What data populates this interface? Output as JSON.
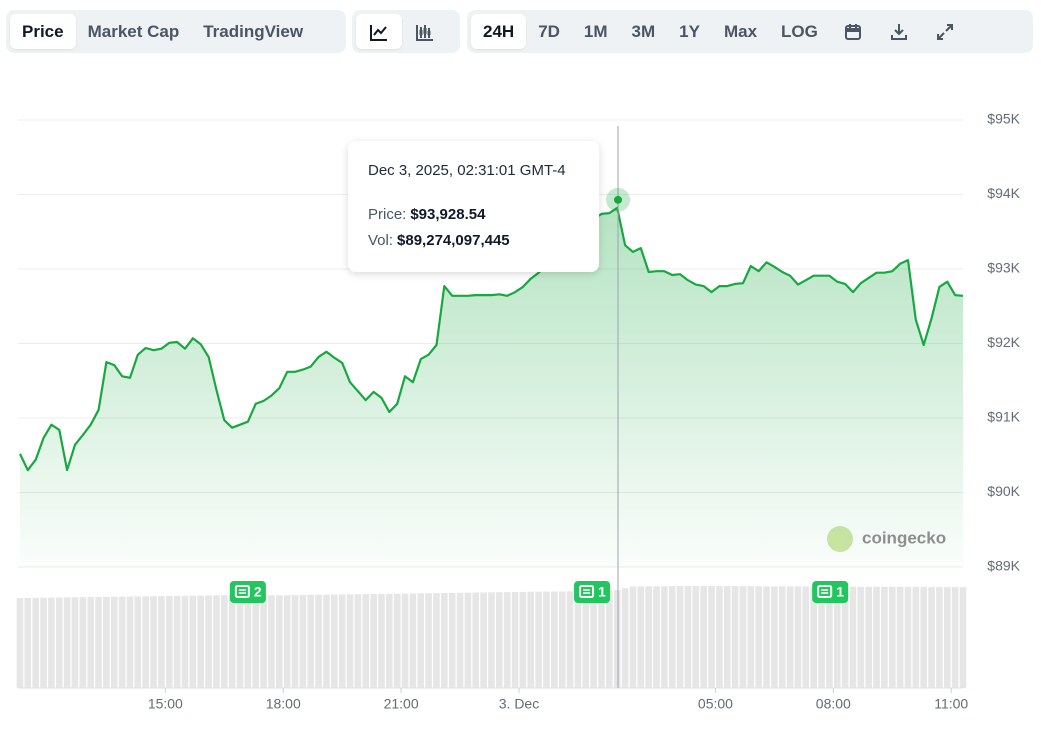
{
  "toolbar": {
    "views": [
      "Price",
      "Market Cap",
      "TradingView"
    ],
    "active_view": "Price",
    "ranges": [
      "24H",
      "7D",
      "1M",
      "3M",
      "1Y",
      "Max",
      "LOG"
    ],
    "active_range": "24H"
  },
  "watermark": "coingecko",
  "chart_data": {
    "type": "line",
    "x": [
      11.3,
      11.5,
      11.7,
      11.9,
      12.1,
      12.3,
      12.5,
      12.7,
      12.9,
      13.1,
      13.3,
      13.5,
      13.7,
      13.9,
      14.1,
      14.3,
      14.5,
      14.7,
      14.9,
      15.1,
      15.3,
      15.5,
      15.7,
      15.9,
      16.1,
      16.3,
      16.5,
      16.7,
      16.9,
      17.1,
      17.3,
      17.5,
      17.7,
      17.9,
      18.1,
      18.3,
      18.5,
      18.7,
      18.9,
      19.1,
      19.3,
      19.5,
      19.7,
      19.9,
      20.1,
      20.3,
      20.5,
      20.7,
      20.9,
      21.1,
      21.3,
      21.5,
      21.7,
      21.9,
      22.1,
      22.3,
      22.5,
      22.7,
      22.9,
      23.1,
      23.3,
      23.5,
      23.7,
      23.9,
      24.1,
      24.3,
      24.5,
      24.7,
      24.9,
      25.1,
      25.3,
      25.5,
      25.7,
      25.9,
      26.1,
      26.3,
      26.5,
      26.7,
      26.9,
      27.1,
      27.3,
      27.5,
      27.7,
      27.9,
      28.1,
      28.3,
      28.5,
      28.7,
      28.9,
      29.1,
      29.3,
      29.5,
      29.7,
      29.9,
      30.1,
      30.3,
      30.5,
      30.7,
      30.9,
      31.1,
      31.3,
      31.5,
      31.7,
      31.9,
      32.1,
      32.3,
      32.5,
      32.7,
      32.9,
      33.1,
      33.3,
      33.5,
      33.7,
      33.9,
      34.1,
      34.3,
      34.5,
      34.7,
      34.9,
      35.1,
      35.3
    ],
    "xlim": [
      11.25,
      35.3
    ],
    "xticks": [
      {
        "value": 15,
        "label": "15:00"
      },
      {
        "value": 18,
        "label": "18:00"
      },
      {
        "value": 21,
        "label": "21:00"
      },
      {
        "value": 24,
        "label": "3. Dec"
      },
      {
        "value": 29,
        "label": "05:00"
      },
      {
        "value": 32,
        "label": "08:00"
      },
      {
        "value": 35,
        "label": "11:00"
      }
    ],
    "ylim": [
      89000,
      95000
    ],
    "yticks": [
      {
        "value": 95000,
        "label": "$95K"
      },
      {
        "value": 94000,
        "label": "$94K"
      },
      {
        "value": 93000,
        "label": "$93K"
      },
      {
        "value": 92000,
        "label": "$92K"
      },
      {
        "value": 91000,
        "label": "$91K"
      },
      {
        "value": 90000,
        "label": "$90K"
      },
      {
        "value": 89000,
        "label": "$89K"
      }
    ],
    "grid": true,
    "series": [
      {
        "type": "line",
        "color": "#17a840",
        "values": [
          90520,
          90300,
          90440,
          90730,
          90910,
          90840,
          90300,
          90640,
          90770,
          90910,
          91110,
          91750,
          91710,
          91560,
          91540,
          91850,
          91940,
          91910,
          91930,
          92010,
          92020,
          91930,
          92070,
          91990,
          91820,
          91380,
          90970,
          90870,
          90910,
          90950,
          91190,
          91230,
          91300,
          91400,
          91620,
          91620,
          91650,
          91690,
          91820,
          91890,
          91810,
          91740,
          91480,
          91360,
          91240,
          91350,
          91270,
          91080,
          91190,
          91560,
          91480,
          91790,
          91850,
          91980,
          92770,
          92640,
          92640,
          92640,
          92650,
          92650,
          92650,
          92660,
          92640,
          92690,
          92760,
          92870,
          92950,
          93040,
          93160,
          93280,
          93390,
          93470,
          93550,
          93670,
          93740,
          93750,
          93820,
          93320,
          93230,
          93280,
          92960,
          92970,
          92970,
          92920,
          92930,
          92850,
          92790,
          92770,
          92690,
          92770,
          92770,
          92800,
          92810,
          93040,
          92970,
          93090,
          93030,
          92960,
          92910,
          92790,
          92850,
          92910,
          92910,
          92910,
          92830,
          92800,
          92690,
          92810,
          92880,
          92950,
          92950,
          92970,
          93070,
          93120,
          92320,
          91980,
          92340,
          92760,
          92830,
          92650,
          92640
        ]
      },
      {
        "type": "bar",
        "color": "#e6e6e6",
        "values": [
          82000000000,
          82100000000,
          82200000000,
          82300000000,
          82400000000,
          82500000000,
          82600000000,
          82700000000,
          82800000000,
          82900000000,
          83000000000,
          83100000000,
          83200000000,
          83300000000,
          83400000000,
          83500000000,
          83600000000,
          83700000000,
          83800000000,
          83900000000,
          84000000000,
          84100000000,
          84200000000,
          84300000000,
          84400000000,
          84500000000,
          84600000000,
          84700000000,
          84800000000,
          84800000000,
          84700000000,
          84600000000,
          84500000000,
          84500000000,
          84600000000,
          84700000000,
          84800000000,
          84900000000,
          85000000000,
          85100000000,
          85200000000,
          85300000000,
          85400000000,
          85500000000,
          85600000000,
          85700000000,
          85800000000,
          85900000000,
          86000000000,
          86100000000,
          86200000000,
          86300000000,
          86400000000,
          86500000000,
          86600000000,
          86700000000,
          86800000000,
          86900000000,
          87000000000,
          87100000000,
          87200000000,
          87300000000,
          87400000000,
          87500000000,
          87600000000,
          87700000000,
          87800000000,
          87900000000,
          88000000000,
          88100000000,
          88200000000,
          88500000000,
          88800000000,
          89000000000,
          89100000000,
          89200000000,
          89300000000,
          91000000000,
          92500000000,
          92600000000,
          92700000000,
          92800000000,
          92800000000,
          92900000000,
          92900000000,
          93000000000,
          93000000000,
          93000000000,
          93000000000,
          92900000000,
          92900000000,
          92900000000,
          92800000000,
          92800000000,
          92800000000,
          92700000000,
          92700000000,
          92700000000,
          92600000000,
          92600000000,
          92600000000,
          92500000000,
          92500000000,
          92500000000,
          92400000000,
          92400000000,
          92400000000,
          92300000000,
          92300000000,
          92300000000,
          92200000000,
          92200000000,
          92200000000,
          92100000000,
          92100000000,
          92100000000,
          92000000000,
          92000000000,
          92000000000,
          92000000000,
          92000000000
        ]
      }
    ],
    "events": [
      {
        "x": 17.1,
        "count": 2
      },
      {
        "x": 25.86,
        "count": 1
      },
      {
        "x": 31.92,
        "count": 1
      }
    ],
    "tooltip": {
      "date": "Dec 3, 2025, 02:31:01 GMT-4",
      "x": 26.52,
      "price_label": "Price:",
      "price": {
        "value": 93928.54,
        "label": "$93,928.54"
      },
      "vol_label": "Vol:",
      "vol": {
        "value": 89274097445,
        "label": "$89,274,097,445"
      }
    }
  }
}
